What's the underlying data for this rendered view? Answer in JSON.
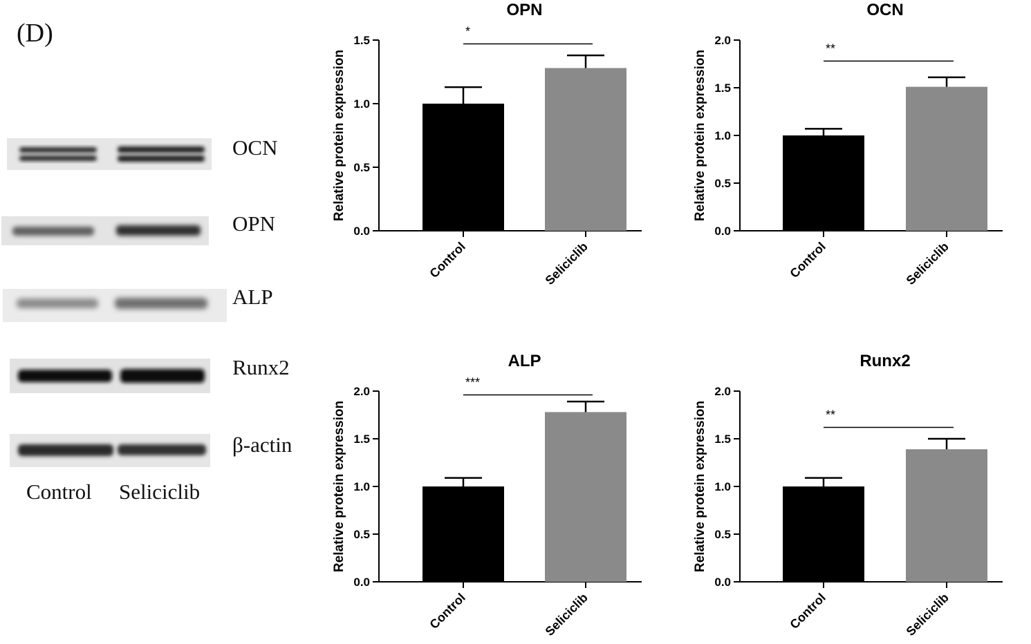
{
  "figure": {
    "panel_label": "(D)"
  },
  "blot": {
    "proteins": [
      "OCN",
      "OPN",
      "ALP",
      "Runx2",
      "β-actin"
    ],
    "lanes": [
      "Control",
      "Seliciclib"
    ]
  },
  "chart_data": [
    {
      "type": "bar",
      "title": "OPN",
      "categories": [
        "Control",
        "Seliciclib"
      ],
      "values": [
        1.0,
        1.28
      ],
      "errors": [
        0.13,
        0.1
      ],
      "ylabel": "Relative protein expression",
      "xlabel": "",
      "ylim": [
        0,
        1.5
      ],
      "yticks": [
        "0.0",
        "0.5",
        "1.0",
        "1.5"
      ],
      "bar_colors": [
        "#000000",
        "#8a8a8a"
      ],
      "significance": {
        "label": "*",
        "y": 1.47
      }
    },
    {
      "type": "bar",
      "title": "OCN",
      "categories": [
        "Control",
        "Seliciclib"
      ],
      "values": [
        1.0,
        1.51
      ],
      "errors": [
        0.07,
        0.1
      ],
      "ylabel": "Relative protein expression",
      "xlabel": "",
      "ylim": [
        0,
        2.0
      ],
      "yticks": [
        "0.0",
        "0.5",
        "1.0",
        "1.5",
        "2.0"
      ],
      "bar_colors": [
        "#000000",
        "#8a8a8a"
      ],
      "significance": {
        "label": "**",
        "y": 1.78
      }
    },
    {
      "type": "bar",
      "title": "ALP",
      "categories": [
        "Control",
        "Seliciclib"
      ],
      "values": [
        1.0,
        1.78
      ],
      "errors": [
        0.09,
        0.11
      ],
      "ylabel": "Relative protein expression",
      "xlabel": "",
      "ylim": [
        0,
        2.0
      ],
      "yticks": [
        "0.0",
        "0.5",
        "1.0",
        "1.5",
        "2.0"
      ],
      "bar_colors": [
        "#000000",
        "#8a8a8a"
      ],
      "significance": {
        "label": "***",
        "y": 1.96
      }
    },
    {
      "type": "bar",
      "title": "Runx2",
      "categories": [
        "Control",
        "Seliciclib"
      ],
      "values": [
        1.0,
        1.39
      ],
      "errors": [
        0.09,
        0.11
      ],
      "ylabel": "Relative protein expression",
      "xlabel": "",
      "ylim": [
        0,
        2.0
      ],
      "yticks": [
        "0.0",
        "0.5",
        "1.0",
        "1.5",
        "2.0"
      ],
      "bar_colors": [
        "#000000",
        "#8a8a8a"
      ],
      "significance": {
        "label": "**",
        "y": 1.62
      }
    }
  ]
}
